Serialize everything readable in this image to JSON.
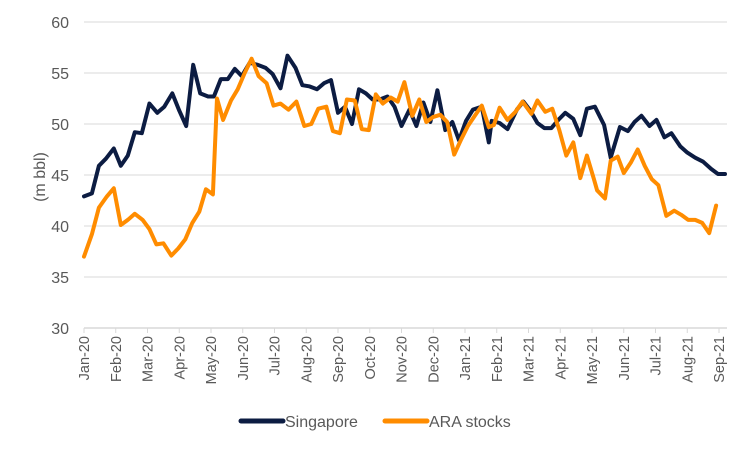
{
  "chart_data": {
    "type": "line",
    "title": "",
    "xlabel": "",
    "ylabel": "(m bbl)",
    "ylim": [
      30,
      60
    ],
    "yticks": [
      30,
      35,
      40,
      45,
      50,
      55,
      60
    ],
    "grid": true,
    "legend": "bottom-center",
    "x_tick_labels": [
      "Jan-20",
      "Feb-20",
      "Mar-20",
      "Apr-20",
      "May-20",
      "Jun-20",
      "Jul-20",
      "Aug-20",
      "Sep-20",
      "Oct-20",
      "Nov-20",
      "Dec-20",
      "Jan-21",
      "Feb-21",
      "Mar-21",
      "Apr-21",
      "May-21",
      "Jun-21",
      "Jul-21",
      "Aug-21",
      "Sep-21"
    ],
    "x_range_months": [
      0,
      20.25
    ],
    "series": [
      {
        "name": "Singapore",
        "color": "#0c1c42",
        "x_months": [
          0,
          0.25,
          0.47,
          0.69,
          0.94,
          1.16,
          1.38,
          1.6,
          1.82,
          2.06,
          2.31,
          2.53,
          2.78,
          3.0,
          3.22,
          3.44,
          3.66,
          3.91,
          4.09,
          4.31,
          4.53,
          4.75,
          4.97,
          5.22,
          5.47,
          5.72,
          5.94,
          6.19,
          6.41,
          6.66,
          6.88,
          7.09,
          7.34,
          7.56,
          7.78,
          8.0,
          8.22,
          8.44,
          8.66,
          8.88,
          9.09,
          9.31,
          9.56,
          9.78,
          10.0,
          10.25,
          10.47,
          10.69,
          10.91,
          11.13,
          11.38,
          11.6,
          11.81,
          12.03,
          12.25,
          12.53,
          12.75,
          12.84,
          13.09,
          13.34,
          13.63,
          13.84,
          14.06,
          14.28,
          14.5,
          14.72,
          14.94,
          15.16,
          15.41,
          15.63,
          15.84,
          16.09,
          16.38,
          16.59,
          16.88,
          17.13,
          17.34,
          17.56,
          17.81,
          18.03,
          18.28,
          18.5,
          18.78,
          19.0,
          19.25,
          19.5,
          19.75,
          19.97,
          20.19
        ],
        "values": [
          42.9,
          43.2,
          45.9,
          46.6,
          47.6,
          45.9,
          46.9,
          49.2,
          49.1,
          52.0,
          51.1,
          51.7,
          53.0,
          51.3,
          49.8,
          55.8,
          53.0,
          52.7,
          52.7,
          54.4,
          54.4,
          55.4,
          54.7,
          56.0,
          55.8,
          55.5,
          54.9,
          53.5,
          56.7,
          55.5,
          53.8,
          53.7,
          53.4,
          54.0,
          54.3,
          51.1,
          51.7,
          50.0,
          53.4,
          53.0,
          52.4,
          52.4,
          52.7,
          51.7,
          49.8,
          51.4,
          49.8,
          52.1,
          50.2,
          53.3,
          49.4,
          50.2,
          48.4,
          50.3,
          51.4,
          51.7,
          48.2,
          50.3,
          50.1,
          49.5,
          51.4,
          52.2,
          51.3,
          50.1,
          49.6,
          49.6,
          50.4,
          51.1,
          50.5,
          48.9,
          51.5,
          51.7,
          49.9,
          46.7,
          49.7,
          49.3,
          50.2,
          50.8,
          49.8,
          50.4,
          48.7,
          49.1,
          47.8,
          47.2,
          46.7,
          46.3,
          45.6,
          45.1,
          45.1,
          47.2
        ]
      },
      {
        "name": "ARA stocks",
        "color": "#ff8c00",
        "x_months": [
          0,
          0.25,
          0.47,
          0.72,
          0.94,
          1.16,
          1.38,
          1.6,
          1.85,
          2.06,
          2.28,
          2.5,
          2.75,
          2.97,
          3.19,
          3.41,
          3.63,
          3.84,
          4.06,
          4.19,
          4.38,
          4.63,
          4.84,
          5.06,
          5.28,
          5.5,
          5.75,
          5.97,
          6.19,
          6.44,
          6.69,
          6.94,
          7.16,
          7.38,
          7.63,
          7.84,
          8.06,
          8.28,
          8.53,
          8.75,
          8.97,
          9.19,
          9.41,
          9.66,
          9.88,
          10.09,
          10.34,
          10.56,
          10.78,
          11.0,
          11.22,
          11.44,
          11.66,
          11.88,
          12.09,
          12.31,
          12.53,
          12.75,
          12.91,
          13.09,
          13.34,
          13.59,
          13.81,
          14.09,
          14.28,
          14.53,
          14.75,
          14.97,
          15.19,
          15.41,
          15.63,
          15.84,
          16.06,
          16.16,
          16.41,
          16.59,
          16.81,
          17.0,
          17.22,
          17.44,
          17.66,
          17.88,
          18.09,
          18.34,
          18.59,
          18.81,
          19.03,
          19.25,
          19.47,
          19.69,
          19.91,
          20.19
        ],
        "values": [
          37.0,
          39.2,
          41.8,
          42.9,
          43.7,
          40.1,
          40.6,
          41.2,
          40.6,
          39.7,
          38.2,
          38.3,
          37.1,
          37.8,
          38.7,
          40.3,
          41.4,
          43.6,
          43.1,
          52.5,
          50.4,
          52.3,
          53.4,
          55.0,
          56.4,
          54.7,
          54.0,
          51.8,
          52.0,
          51.4,
          52.2,
          49.8,
          50.0,
          51.5,
          51.7,
          49.3,
          49.1,
          52.4,
          52.3,
          49.5,
          49.4,
          52.9,
          52.0,
          52.6,
          52.2,
          54.1,
          50.8,
          52.4,
          50.2,
          50.7,
          50.9,
          50.2,
          47.0,
          48.5,
          49.8,
          50.8,
          51.8,
          49.7,
          49.9,
          51.6,
          50.4,
          51.2,
          52.2,
          51.0,
          52.3,
          51.2,
          51.5,
          49.4,
          46.9,
          48.2,
          44.7,
          46.9,
          44.6,
          43.5,
          42.7,
          46.4,
          46.8,
          45.2,
          46.2,
          47.5,
          45.9,
          44.6,
          44.0,
          41.0,
          41.5,
          41.1,
          40.6,
          40.6,
          40.3,
          39.3,
          42.0
        ]
      }
    ]
  }
}
